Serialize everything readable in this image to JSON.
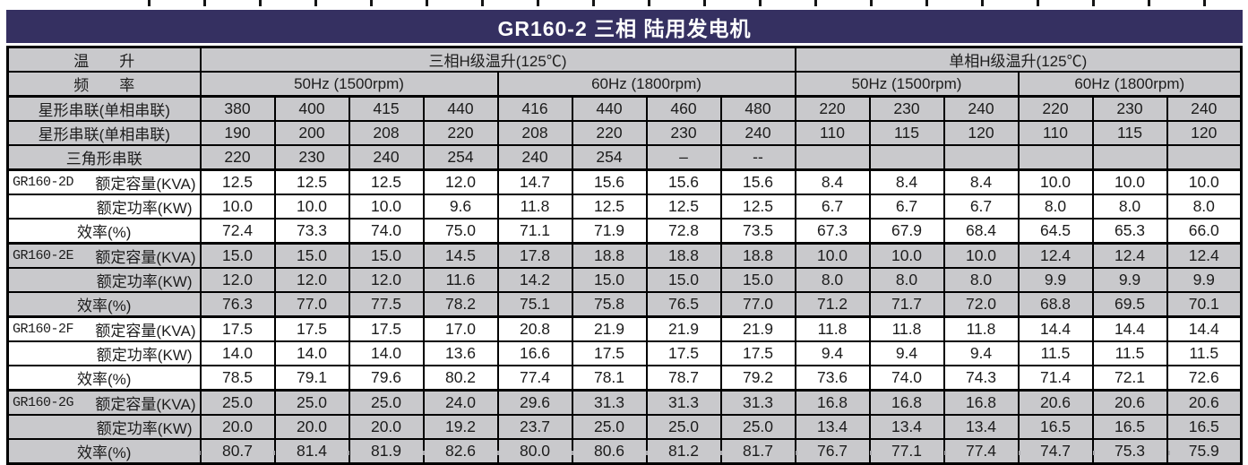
{
  "title": "GR160-2 三相 陆用发电机",
  "colors": {
    "title_bg": "#353061",
    "title_text": "#ffffff",
    "row_gray": "#c9c9cc",
    "row_white": "#ffffff",
    "border": "#000000"
  },
  "header": {
    "temp_label": "温　　升",
    "freq_label": "频　　率",
    "three_phase": "三相H级温升(125℃)",
    "single_phase": "单相H级温升(125℃)",
    "freq_50": "50Hz (1500rpm)",
    "freq_60": "60Hz (1800rpm)"
  },
  "chart_data": {
    "type": "table",
    "title": "GR160-2 三相 陆用发电机",
    "column_groups": [
      {
        "label": "三相H级温升(125℃)",
        "sub": [
          {
            "label": "50Hz (1500rpm)",
            "cols": 4
          },
          {
            "label": "60Hz (1800rpm)",
            "cols": 4
          }
        ]
      },
      {
        "label": "单相H级温升(125℃)",
        "sub": [
          {
            "label": "50Hz (1500rpm)",
            "cols": 3
          },
          {
            "label": "60Hz (1800rpm)",
            "cols": 3
          }
        ]
      }
    ]
  },
  "body_rows": [
    {
      "code": "",
      "label": "星形串联(单相串联)",
      "label_align": "center",
      "shade": "gray",
      "values": [
        "380",
        "400",
        "415",
        "440",
        "416",
        "440",
        "460",
        "480",
        "220",
        "230",
        "240",
        "220",
        "230",
        "240"
      ]
    },
    {
      "code": "",
      "label": "星形串联(单相串联)",
      "label_align": "center",
      "shade": "gray",
      "values": [
        "190",
        "200",
        "208",
        "220",
        "208",
        "220",
        "230",
        "240",
        "110",
        "115",
        "120",
        "110",
        "115",
        "120"
      ]
    },
    {
      "code": "",
      "label": "三角形串联",
      "label_align": "center",
      "shade": "gray",
      "values": [
        "220",
        "230",
        "240",
        "254",
        "240",
        "254",
        "–",
        "--",
        "",
        "",
        "",
        "",
        "",
        ""
      ]
    },
    {
      "code": "GR160-2D",
      "label": "额定容量(KVA)",
      "label_align": "fill",
      "shade": "white",
      "values": [
        "12.5",
        "12.5",
        "12.5",
        "12.0",
        "14.7",
        "15.6",
        "15.6",
        "15.6",
        "8.4",
        "8.4",
        "8.4",
        "10.0",
        "10.0",
        "10.0"
      ]
    },
    {
      "code": "",
      "label": "额定功率(KW)",
      "label_align": "right",
      "shade": "white",
      "values": [
        "10.0",
        "10.0",
        "10.0",
        "9.6",
        "11.8",
        "12.5",
        "12.5",
        "12.5",
        "6.7",
        "6.7",
        "6.7",
        "8.0",
        "8.0",
        "8.0"
      ]
    },
    {
      "code": "",
      "label": "效率(%)",
      "label_align": "center",
      "shade": "white",
      "values": [
        "72.4",
        "73.3",
        "74.0",
        "75.0",
        "71.1",
        "71.9",
        "72.8",
        "73.5",
        "67.3",
        "67.9",
        "68.4",
        "64.5",
        "65.3",
        "66.0"
      ]
    },
    {
      "code": "GR160-2E",
      "label": "额定容量(KVA)",
      "label_align": "fill",
      "shade": "gray",
      "values": [
        "15.0",
        "15.0",
        "15.0",
        "14.5",
        "17.8",
        "18.8",
        "18.8",
        "18.8",
        "10.0",
        "10.0",
        "10.0",
        "12.4",
        "12.4",
        "12.4"
      ]
    },
    {
      "code": "",
      "label": "额定功率(KW)",
      "label_align": "right",
      "shade": "gray",
      "values": [
        "12.0",
        "12.0",
        "12.0",
        "11.6",
        "14.2",
        "15.0",
        "15.0",
        "15.0",
        "8.0",
        "8.0",
        "8.0",
        "9.9",
        "9.9",
        "9.9"
      ]
    },
    {
      "code": "",
      "label": "效率(%)",
      "label_align": "center",
      "shade": "gray",
      "values": [
        "76.3",
        "77.0",
        "77.5",
        "78.2",
        "75.1",
        "75.8",
        "76.5",
        "77.0",
        "71.2",
        "71.7",
        "72.0",
        "68.8",
        "69.5",
        "70.1"
      ]
    },
    {
      "code": "GR160-2F",
      "label": "额定容量(KVA)",
      "label_align": "fill",
      "shade": "white",
      "values": [
        "17.5",
        "17.5",
        "17.5",
        "17.0",
        "20.8",
        "21.9",
        "21.9",
        "21.9",
        "11.8",
        "11.8",
        "11.8",
        "14.4",
        "14.4",
        "14.4"
      ]
    },
    {
      "code": "",
      "label": "额定功率(KW)",
      "label_align": "right",
      "shade": "white",
      "values": [
        "14.0",
        "14.0",
        "14.0",
        "13.6",
        "16.6",
        "17.5",
        "17.5",
        "17.5",
        "9.4",
        "9.4",
        "9.4",
        "11.5",
        "11.5",
        "11.5"
      ]
    },
    {
      "code": "",
      "label": "效率(%)",
      "label_align": "center",
      "shade": "white",
      "values": [
        "78.5",
        "79.1",
        "79.6",
        "80.2",
        "77.4",
        "78.1",
        "78.7",
        "79.2",
        "73.6",
        "74.0",
        "74.3",
        "71.4",
        "72.1",
        "72.6"
      ]
    },
    {
      "code": "GR160-2G",
      "label": "额定容量(KVA)",
      "label_align": "fill",
      "shade": "gray",
      "values": [
        "25.0",
        "25.0",
        "25.0",
        "24.0",
        "29.6",
        "31.3",
        "31.3",
        "31.3",
        "16.8",
        "16.8",
        "16.8",
        "20.6",
        "20.6",
        "20.6"
      ]
    },
    {
      "code": "",
      "label": "额定功率(KW)",
      "label_align": "right",
      "shade": "gray",
      "values": [
        "20.0",
        "20.0",
        "20.0",
        "19.2",
        "23.7",
        "25.0",
        "25.0",
        "25.0",
        "13.4",
        "13.4",
        "13.4",
        "16.5",
        "16.5",
        "16.5"
      ]
    },
    {
      "code": "",
      "label": "效率(%)",
      "label_align": "center",
      "shade": "gray",
      "values": [
        "80.7",
        "81.4",
        "81.9",
        "82.6",
        "80.0",
        "80.6",
        "81.2",
        "81.7",
        "76.7",
        "77.1",
        "77.4",
        "74.7",
        "75.3",
        "75.9"
      ]
    }
  ]
}
